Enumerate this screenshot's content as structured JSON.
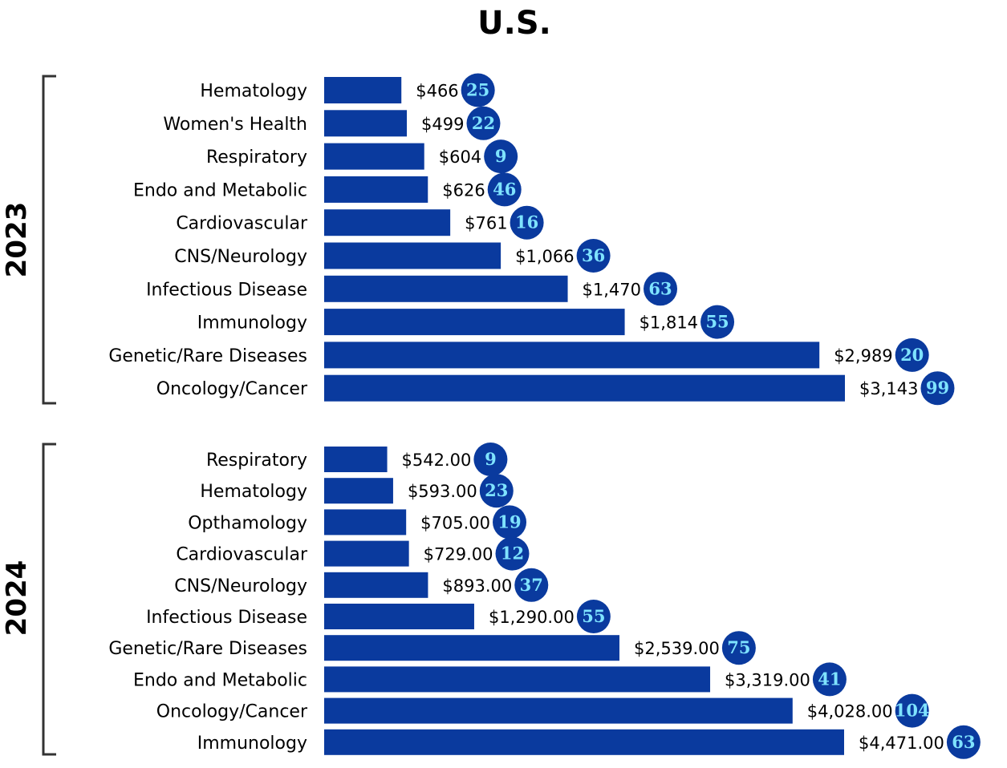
{
  "colors": {
    "bar": "#0a3a9e",
    "bubble_fill": "#0a3a9e",
    "bubble_text": "#7fe3ff",
    "bracket": "#333333"
  },
  "chart_data": {
    "type": "bar",
    "orientation": "horizontal",
    "title": "U.S.",
    "legend": "none",
    "grid": false,
    "panels": [
      {
        "group_label": "2023",
        "categories": [
          "Hematology",
          "Women's Health",
          "Respiratory",
          "Endo and Metabolic",
          "Cardiovascular",
          "CNS/Neurology",
          "Infectious Disease",
          "Immunology",
          "Genetic/Rare Diseases",
          "Oncology/Cancer"
        ],
        "values": [
          466,
          499,
          604,
          626,
          761,
          1066,
          1470,
          1814,
          2989,
          3143
        ],
        "value_labels": [
          "$466",
          "$499",
          "$604",
          "$626",
          "$761",
          "$1,066",
          "$1,470",
          "$1,814",
          "$2,989",
          "$3,143"
        ],
        "counts": [
          25,
          22,
          9,
          46,
          16,
          36,
          63,
          55,
          20,
          99
        ]
      },
      {
        "group_label": "2024",
        "categories": [
          "Respiratory",
          "Hematology",
          "Opthamology",
          "Cardiovascular",
          "CNS/Neurology",
          "Infectious Disease",
          "Genetic/Rare Diseases",
          "Endo and Metabolic",
          "Oncology/Cancer",
          "Immunology"
        ],
        "values": [
          542,
          593,
          705,
          729,
          893,
          1290,
          2539,
          3319,
          4028,
          4471
        ],
        "value_labels": [
          "$542.00",
          "$593.00",
          "$705.00",
          "$729.00",
          "$893.00",
          "$1,290.00",
          "$2,539.00",
          "$3,319.00",
          "$4,028.00",
          "$4,471.00"
        ],
        "counts": [
          9,
          23,
          19,
          12,
          37,
          55,
          75,
          41,
          104,
          63
        ]
      }
    ]
  }
}
